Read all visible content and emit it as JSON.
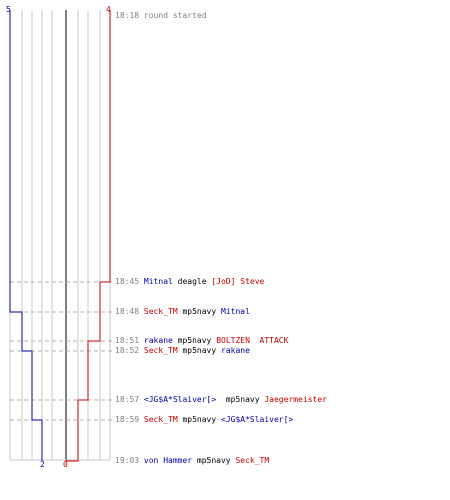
{
  "colors": {
    "team_blue": "#0000aa",
    "team_red": "#cc0000",
    "neutral": "#000000",
    "time": "#808080",
    "grid": "#c0c0c0",
    "center": "#808080"
  },
  "score": {
    "blue_start": "5",
    "red_start": "4",
    "blue_end": "2",
    "red_end": "0"
  },
  "chart_data": {
    "type": "line",
    "x": [
      "18:18",
      "18:45",
      "18:48",
      "18:51",
      "18:52",
      "18:57",
      "18:59",
      "19:03"
    ],
    "series": [
      {
        "values": [
          5,
          5,
          4,
          4,
          3,
          3,
          2,
          2
        ]
      },
      {
        "values": [
          4,
          3,
          3,
          2,
          2,
          1,
          1,
          0
        ]
      }
    ],
    "ylim": [
      0,
      5
    ]
  },
  "events": [
    {
      "time": "18:18",
      "parts": [
        {
          "text": "round started",
          "team": "time"
        }
      ]
    },
    {
      "time": "18:45",
      "parts": [
        {
          "text": "Mitnal",
          "team": "blue"
        },
        {
          "text": " deagle ",
          "team": "neutral"
        },
        {
          "text": "[JoD] Steve",
          "team": "red"
        }
      ]
    },
    {
      "time": "18:48",
      "parts": [
        {
          "text": "Seck_TM",
          "team": "red"
        },
        {
          "text": " mp5navy ",
          "team": "neutral"
        },
        {
          "text": "Mitnal",
          "team": "blue"
        }
      ]
    },
    {
      "time": "18:51",
      "parts": [
        {
          "text": "rakane",
          "team": "blue"
        },
        {
          "text": " mp5navy ",
          "team": "neutral"
        },
        {
          "text": "BOLTZEN  ATTACK",
          "team": "red"
        }
      ]
    },
    {
      "time": "18:52",
      "parts": [
        {
          "text": "Seck_TM",
          "team": "red"
        },
        {
          "text": " mp5navy ",
          "team": "neutral"
        },
        {
          "text": "rakane",
          "team": "blue"
        }
      ]
    },
    {
      "time": "18:57",
      "parts": [
        {
          "text": "<JG$A*Slaiver[>",
          "team": "blue"
        },
        {
          "text": "  mp5navy ",
          "team": "neutral"
        },
        {
          "text": "Jaegermeister",
          "team": "red"
        }
      ]
    },
    {
      "time": "18:59",
      "parts": [
        {
          "text": "Seck_TM",
          "team": "red"
        },
        {
          "text": " mp5navy ",
          "team": "neutral"
        },
        {
          "text": "<JG$A*Slaiver[>",
          "team": "blue"
        }
      ]
    },
    {
      "time": "19:03",
      "parts": [
        {
          "text": "von Hammer",
          "team": "blue"
        },
        {
          "text": " mp5navy ",
          "team": "neutral"
        },
        {
          "text": "Seck_TM",
          "team": "red"
        }
      ]
    }
  ]
}
